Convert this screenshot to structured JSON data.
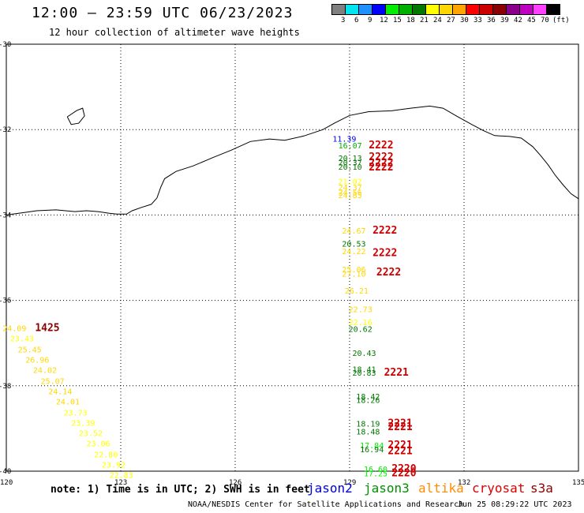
{
  "header": {
    "title": "12:00 – 23:59 UTC 06/23/2023",
    "subtitle": "12 hour collection of altimeter wave heights"
  },
  "legend": {
    "unit": "(ft)",
    "colors": [
      "#808080",
      "#00e5ee",
      "#1e90ff",
      "#0000ff",
      "#00ee00",
      "#00b000",
      "#007800",
      "#ffff00",
      "#ffd700",
      "#ffa500",
      "#ff0000",
      "#cd0000",
      "#8b0000",
      "#8b008b",
      "#c000c0",
      "#ff40ff",
      "#000000"
    ],
    "ticks": [
      "3",
      "6",
      "9",
      "12",
      "15",
      "18",
      "21",
      "24",
      "27",
      "30",
      "33",
      "36",
      "39",
      "42",
      "45",
      "70",
      "(ft)"
    ]
  },
  "map": {
    "lon_ticks": [
      "120",
      "123",
      "126",
      "129",
      "132",
      "135"
    ],
    "lat_ticks": [
      "-30",
      "-32",
      "-34",
      "-36",
      "-38",
      "-40"
    ]
  },
  "observations": {
    "waves": [
      {
        "lon": 128.8,
        "lat": -32.28,
        "text": "11.39",
        "color": "#0000ff"
      },
      {
        "lon": 128.95,
        "lat": -32.44,
        "text": "16.07",
        "color": "#00b000"
      },
      {
        "lon": 128.95,
        "lat": -32.74,
        "text": "20.13",
        "color": "#007800"
      },
      {
        "lon": 128.95,
        "lat": -32.84,
        "text": "20.37",
        "color": "#007800"
      },
      {
        "lon": 128.95,
        "lat": -32.94,
        "text": "20.10",
        "color": "#007800"
      },
      {
        "lon": 128.95,
        "lat": -33.28,
        "text": "21.02",
        "color": "#ffff00"
      },
      {
        "lon": 128.95,
        "lat": -33.42,
        "text": "24.37",
        "color": "#ffd700"
      },
      {
        "lon": 128.95,
        "lat": -33.54,
        "text": "24.56",
        "color": "#ffd700"
      },
      {
        "lon": 128.95,
        "lat": -33.6,
        "text": "24.85",
        "color": "#ffd700"
      },
      {
        "lon": 129.05,
        "lat": -34.44,
        "text": "24.67",
        "color": "#ffd700"
      },
      {
        "lon": 129.05,
        "lat": -34.74,
        "text": "20.53",
        "color": "#007800"
      },
      {
        "lon": 129.05,
        "lat": -34.92,
        "text": "24.22",
        "color": "#ffd700"
      },
      {
        "lon": 129.05,
        "lat": -35.34,
        "text": "25.06",
        "color": "#ffd700"
      },
      {
        "lon": 129.05,
        "lat": -35.44,
        "text": "27.10",
        "color": "#ffd700"
      },
      {
        "lon": 129.12,
        "lat": -35.84,
        "text": "26.21",
        "color": "#ffd700"
      },
      {
        "lon": 129.22,
        "lat": -36.28,
        "text": "22.73",
        "color": "#ffd700"
      },
      {
        "lon": 129.22,
        "lat": -36.58,
        "text": "22.16",
        "color": "#ffff00"
      },
      {
        "lon": 129.22,
        "lat": -36.74,
        "text": "20.62",
        "color": "#007800"
      },
      {
        "lon": 129.32,
        "lat": -37.3,
        "text": "20.43",
        "color": "#007800"
      },
      {
        "lon": 129.32,
        "lat": -37.68,
        "text": "18.41",
        "color": "#007800"
      },
      {
        "lon": 129.32,
        "lat": -37.76,
        "text": "20.83",
        "color": "#007800"
      },
      {
        "lon": 129.42,
        "lat": -38.32,
        "text": "18.42",
        "color": "#007800"
      },
      {
        "lon": 129.42,
        "lat": -38.4,
        "text": "18.26",
        "color": "#007800"
      },
      {
        "lon": 129.42,
        "lat": -38.96,
        "text": "18.19",
        "color": "#007800"
      },
      {
        "lon": 129.42,
        "lat": -39.14,
        "text": "18.48",
        "color": "#007800"
      },
      {
        "lon": 129.52,
        "lat": -39.46,
        "text": "17.84",
        "color": "#00ee00"
      },
      {
        "lon": 129.52,
        "lat": -39.56,
        "text": "16.94",
        "color": "#007800"
      },
      {
        "lon": 129.62,
        "lat": -40.02,
        "text": "16.60",
        "color": "#00ee00"
      },
      {
        "lon": 129.62,
        "lat": -40.12,
        "text": "17.25",
        "color": "#00ee00"
      },
      {
        "lon": 120.15,
        "lat": -36.72,
        "text": "24.09",
        "color": "#ffd700"
      },
      {
        "lon": 120.35,
        "lat": -36.96,
        "text": "23.43",
        "color": "#ffff00"
      },
      {
        "lon": 120.55,
        "lat": -37.22,
        "text": "25.45",
        "color": "#ffd700"
      },
      {
        "lon": 120.75,
        "lat": -37.46,
        "text": "26.96",
        "color": "#ffd700"
      },
      {
        "lon": 120.95,
        "lat": -37.7,
        "text": "24.02",
        "color": "#ffd700"
      },
      {
        "lon": 121.15,
        "lat": -37.96,
        "text": "25.07",
        "color": "#ffd700"
      },
      {
        "lon": 121.35,
        "lat": -38.2,
        "text": "24.14",
        "color": "#ffd700"
      },
      {
        "lon": 121.55,
        "lat": -38.44,
        "text": "24.01",
        "color": "#ffd700"
      },
      {
        "lon": 121.75,
        "lat": -38.7,
        "text": "23.73",
        "color": "#ffff00"
      },
      {
        "lon": 121.95,
        "lat": -38.94,
        "text": "23.39",
        "color": "#ffff00"
      },
      {
        "lon": 122.15,
        "lat": -39.18,
        "text": "23.52",
        "color": "#ffff00"
      },
      {
        "lon": 122.35,
        "lat": -39.42,
        "text": "23.06",
        "color": "#ffff00"
      },
      {
        "lon": 122.55,
        "lat": -39.68,
        "text": "22.80",
        "color": "#ffff00"
      },
      {
        "lon": 122.75,
        "lat": -39.92,
        "text": "23.92",
        "color": "#ffff00"
      },
      {
        "lon": 122.95,
        "lat": -40.16,
        "text": "22.83",
        "color": "#ffff00"
      }
    ],
    "times": [
      {
        "lon": 129.75,
        "lat": -32.44,
        "text": "2222",
        "color": "#cc0000"
      },
      {
        "lon": 129.75,
        "lat": -32.72,
        "text": "2222",
        "color": "#cc0000"
      },
      {
        "lon": 129.75,
        "lat": -32.86,
        "text": "2222",
        "color": "#cc0000"
      },
      {
        "lon": 129.75,
        "lat": -32.96,
        "text": "2222",
        "color": "#cc0000"
      },
      {
        "lon": 129.85,
        "lat": -34.44,
        "text": "2222",
        "color": "#cc0000"
      },
      {
        "lon": 129.85,
        "lat": -34.96,
        "text": "2222",
        "color": "#cc0000"
      },
      {
        "lon": 129.95,
        "lat": -35.42,
        "text": "2222",
        "color": "#cc0000"
      },
      {
        "lon": 130.15,
        "lat": -37.76,
        "text": "2221",
        "color": "#cc0000"
      },
      {
        "lon": 130.25,
        "lat": -38.96,
        "text": "2221",
        "color": "#cc0000"
      },
      {
        "lon": 130.25,
        "lat": -39.04,
        "text": "2221",
        "color": "#cc0000"
      },
      {
        "lon": 130.25,
        "lat": -39.46,
        "text": "2221",
        "color": "#cc0000"
      },
      {
        "lon": 130.25,
        "lat": -39.6,
        "text": "2221",
        "color": "#cc0000"
      },
      {
        "lon": 130.35,
        "lat": -40.02,
        "text": "2220",
        "color": "#cc0000"
      },
      {
        "lon": 130.35,
        "lat": -40.12,
        "text": "2220",
        "color": "#cc0000"
      },
      {
        "lon": 121.0,
        "lat": -36.72,
        "text": "1425",
        "color": "#8b0000"
      }
    ]
  },
  "footer": {
    "note": "note:  1) Time is in UTC;  2) SWH is in feet",
    "satellites": [
      {
        "name": "jason2",
        "color": "#0000dd"
      },
      {
        "name": "jason3",
        "color": "#009000"
      },
      {
        "name": "altika",
        "color": "#ff8c00"
      },
      {
        "name": "cryosat",
        "color": "#dd0000"
      },
      {
        "name": "s3a",
        "color": "#8b0000"
      }
    ],
    "credit": "NOAA/NESDIS Center for Satellite Applications and Research",
    "timestamp": "Jun 25 08:29:22 UTC 2023"
  }
}
